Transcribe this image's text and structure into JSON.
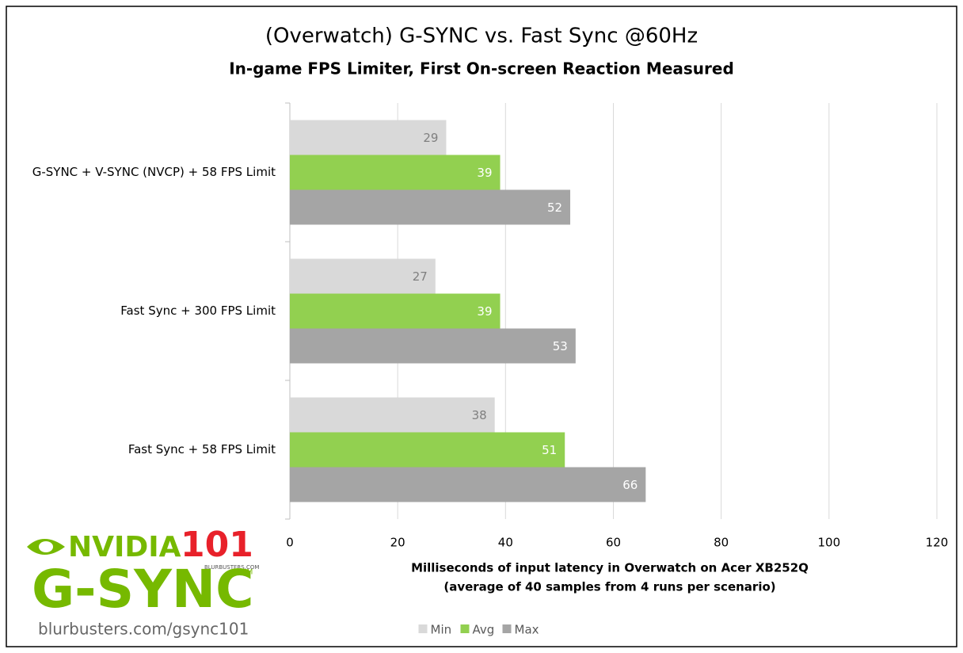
{
  "chart_data": {
    "type": "bar",
    "orientation": "horizontal",
    "title": "(Overwatch) G-SYNC vs. Fast Sync @60Hz",
    "subtitle": "In-game FPS Limiter, First On-screen Reaction Measured",
    "categories": [
      "G-SYNC + V-SYNC (NVCP) + 58 FPS Limit",
      "Fast Sync + 300 FPS Limit",
      "Fast Sync + 58 FPS Limit"
    ],
    "series": [
      {
        "name": "Min",
        "color": "#d9d9d9",
        "label_color": "#7f7f7f",
        "values": [
          29,
          27,
          38
        ]
      },
      {
        "name": "Avg",
        "color": "#92d050",
        "label_color": "#ffffff",
        "values": [
          39,
          39,
          51
        ]
      },
      {
        "name": "Max",
        "color": "#a5a5a5",
        "label_color": "#ffffff",
        "values": [
          52,
          53,
          66
        ]
      }
    ],
    "xlabel": [
      "Milliseconds of input latency in Overwatch on Acer XB252Q",
      "(average of 40 samples from 4 runs per scenario)"
    ],
    "xlim": [
      0,
      120
    ],
    "xticks": [
      0,
      20,
      40,
      60,
      80,
      100,
      120
    ],
    "grid": true,
    "legend": "bottom"
  },
  "logo": {
    "brand": "NVIDIA",
    "number": "101",
    "site_small": "BLURBUSTERS.COM",
    "product": "G-SYNC",
    "tm": "TM",
    "url": "blurbusters.com/gsync101"
  }
}
